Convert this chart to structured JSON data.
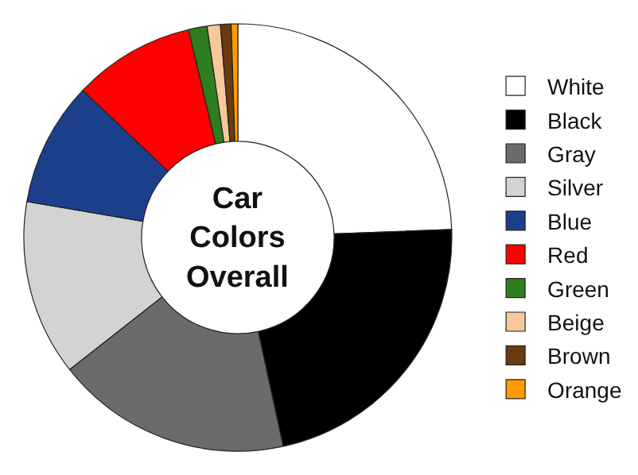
{
  "chart_data": {
    "type": "donut",
    "title": "Car Colors Overall",
    "categories": [
      "White",
      "Black",
      "Gray",
      "Silver",
      "Blue",
      "Red",
      "Green",
      "Beige",
      "Brown",
      "Orange"
    ],
    "values": [
      24.4,
      22.2,
      17.8,
      13.3,
      9.4,
      9.2,
      1.4,
      1,
      0.8,
      0.5
    ],
    "colors": [
      "#ffffff",
      "#000000",
      "#6b6b6b",
      "#d3d3d3",
      "#1c3f8c",
      "#ff0000",
      "#2e7d1e",
      "#f7c99a",
      "#6b3a10",
      "#ff9a00"
    ],
    "legend": "right"
  }
}
